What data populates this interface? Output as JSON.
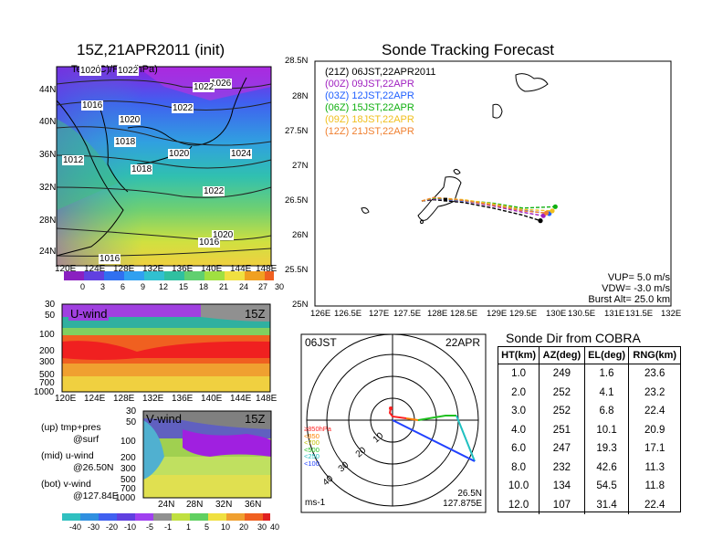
{
  "map_panel": {
    "title": "15Z,21APR2011  (init)",
    "subtitle": "Temp(C)/Pres(hPa)",
    "lat_ticks": [
      "44N",
      "40N",
      "36N",
      "32N",
      "28N",
      "24N"
    ],
    "lon_ticks": [
      "120E",
      "124E",
      "128E",
      "132E",
      "136E",
      "140E",
      "144E",
      "148E"
    ],
    "isobar_labels": [
      "1020",
      "1022",
      "1016",
      "1020",
      "1018",
      "1012",
      "1018",
      "1020",
      "1024",
      "1022",
      "1020",
      "1016",
      "1016",
      "1022",
      "1026",
      "1022"
    ],
    "colorbar_ticks": [
      "0",
      "3",
      "6",
      "9",
      "12",
      "15",
      "18",
      "21",
      "24",
      "27",
      "30"
    ],
    "colors": {
      "cold": "#a020f0",
      "mid": "#2fb4a0",
      "warm": "#f0e040"
    }
  },
  "u_panel": {
    "label": "U-wind",
    "time": "15Z",
    "y_ticks": [
      "30",
      "50",
      "100",
      "200",
      "300",
      "500",
      "700",
      "1000"
    ],
    "lon_ticks": [
      "120E",
      "124E",
      "128E",
      "132E",
      "136E",
      "140E",
      "144E",
      "148E"
    ]
  },
  "v_panel": {
    "label": "V-wind",
    "time": "15Z",
    "y_ticks": [
      "30",
      "50",
      "100",
      "200",
      "300",
      "500",
      "700",
      "1000"
    ],
    "lat_ticks": [
      "24N",
      "28N",
      "32N",
      "36N"
    ]
  },
  "legend_text": {
    "up": "(up) tmp+pres",
    "up2": "@surf",
    "mid": "(mid) u-wind",
    "mid2": "@26.50N",
    "bot": "(bot) v-wind",
    "bot2": "@127.84E"
  },
  "wind_colorbar_ticks": [
    "-40",
    "-30",
    "-20",
    "-10",
    "-5",
    "-1",
    "1",
    "5",
    "10",
    "20",
    "30",
    "40"
  ],
  "track_panel": {
    "title": "Sonde Tracking Forecast",
    "lat_ticks": [
      "28.5N",
      "28N",
      "27.5N",
      "27N",
      "26.5N",
      "26N",
      "25.5N",
      "25N"
    ],
    "lon_ticks": [
      "126E",
      "126.5E",
      "127E",
      "127.5E",
      "128E",
      "128.5E",
      "129E",
      "129.5E",
      "130E",
      "130.5E",
      "131E",
      "131.5E",
      "132E"
    ],
    "legend": [
      {
        "label": "(21Z)  06JST,22APR2011",
        "color": "#000000"
      },
      {
        "label": "(00Z)  09JST,22APR",
        "color": "#a020c0"
      },
      {
        "label": "(03Z)  12JST,22APR",
        "color": "#2060ff"
      },
      {
        "label": "(06Z)  15JST,22APR",
        "color": "#10b010"
      },
      {
        "label": "(09Z)  18JST,22APR",
        "color": "#f0c020"
      },
      {
        "label": "(12Z)  21JST,22APR",
        "color": "#f08030"
      }
    ],
    "params": [
      "VUP=   5.0 m/s",
      "VDW=  -3.0 m/s",
      "Burst Alt=  25.0 km"
    ]
  },
  "polar_panel": {
    "time_left": "06JST",
    "date_right": "22APR",
    "ring_labels": [
      "10",
      "20",
      "30",
      "40"
    ],
    "unit": "ms-1",
    "location": "26.5N",
    "location2": "127.875E",
    "pressure_legend": [
      "≥850hPa",
      "<850",
      "<700",
      "<500",
      "<250",
      "<100"
    ],
    "pressure_colors": [
      "#ff2020",
      "#ff8000",
      "#c0c000",
      "#20c020",
      "#20c0c0",
      "#2040ff"
    ]
  },
  "table": {
    "title": "Sonde Dir  from  COBRA",
    "headers": [
      "HT(km)",
      "AZ(deg)",
      "EL(deg)",
      "RNG(km)"
    ],
    "rows": [
      [
        "1.0",
        "249",
        "1.6",
        "23.6"
      ],
      [
        "2.0",
        "252",
        "4.1",
        "23.2"
      ],
      [
        "3.0",
        "252",
        "6.8",
        "22.4"
      ],
      [
        "4.0",
        "251",
        "10.1",
        "20.9"
      ],
      [
        "6.0",
        "247",
        "19.3",
        "17.1"
      ],
      [
        "8.0",
        "232",
        "42.6",
        "11.3"
      ],
      [
        "10.0",
        "134",
        "54.5",
        "11.8"
      ],
      [
        "12.0",
        "107",
        "31.4",
        "22.4"
      ]
    ]
  },
  "chart_data": [
    {
      "type": "heatmap",
      "title": "15Z,21APR2011  (init)",
      "subtitle": "Temp(C)/Pres(hPa)",
      "x_range": [
        "120E",
        "148E"
      ],
      "y_range": [
        "24N",
        "44N"
      ],
      "colorbar": [
        0,
        3,
        6,
        9,
        12,
        15,
        18,
        21,
        24,
        27,
        30
      ]
    },
    {
      "type": "line",
      "title": "Sonde Tracking Forecast",
      "xlim": [
        126,
        132
      ],
      "ylim": [
        25,
        28.5
      ],
      "series": [
        {
          "name": "(21Z)  06JST,22APR2011",
          "x": [
            127.8,
            128.0,
            128.5,
            129.0,
            129.5,
            129.8
          ],
          "y": [
            26.5,
            26.52,
            26.48,
            26.4,
            26.3,
            26.22
          ]
        },
        {
          "name": "(00Z)  09JST,22APR",
          "x": [
            127.8,
            128.0,
            128.5,
            129.0,
            129.5,
            129.85
          ],
          "y": [
            26.5,
            26.53,
            26.5,
            26.43,
            26.34,
            26.29
          ]
        },
        {
          "name": "(03Z)  12JST,22APR",
          "x": [
            127.8,
            128.0,
            128.5,
            129.0,
            129.5,
            129.95
          ],
          "y": [
            26.5,
            26.54,
            26.5,
            26.45,
            26.37,
            26.32
          ]
        },
        {
          "name": "(06Z)  15JST,22APR",
          "x": [
            127.8,
            128.0,
            128.5,
            129.0,
            129.5,
            130.05
          ],
          "y": [
            26.5,
            26.54,
            26.51,
            26.47,
            26.4,
            26.42
          ]
        },
        {
          "name": "(09Z)  18JST,22APR",
          "x": [
            127.8,
            128.0,
            128.5,
            129.0,
            129.5,
            130.0
          ],
          "y": [
            26.5,
            26.55,
            26.52,
            26.46,
            26.38,
            26.36
          ]
        },
        {
          "name": "(12Z)  21JST,22APR",
          "x": [
            127.8,
            128.0,
            128.5,
            129.0,
            129.5,
            129.9
          ],
          "y": [
            26.5,
            26.55,
            26.51,
            26.44,
            26.36,
            26.33
          ]
        }
      ]
    },
    {
      "type": "table",
      "title": "Sonde Dir  from  COBRA",
      "columns": [
        "HT(km)",
        "AZ(deg)",
        "EL(deg)",
        "RNG(km)"
      ],
      "rows": [
        [
          1.0,
          249,
          1.6,
          23.6
        ],
        [
          2.0,
          252,
          4.1,
          23.2
        ],
        [
          3.0,
          252,
          6.8,
          22.4
        ],
        [
          4.0,
          251,
          10.1,
          20.9
        ],
        [
          6.0,
          247,
          19.3,
          17.1
        ],
        [
          8.0,
          232,
          42.6,
          11.3
        ],
        [
          10.0,
          134,
          54.5,
          11.8
        ],
        [
          12.0,
          107,
          31.4,
          22.4
        ]
      ]
    }
  ]
}
